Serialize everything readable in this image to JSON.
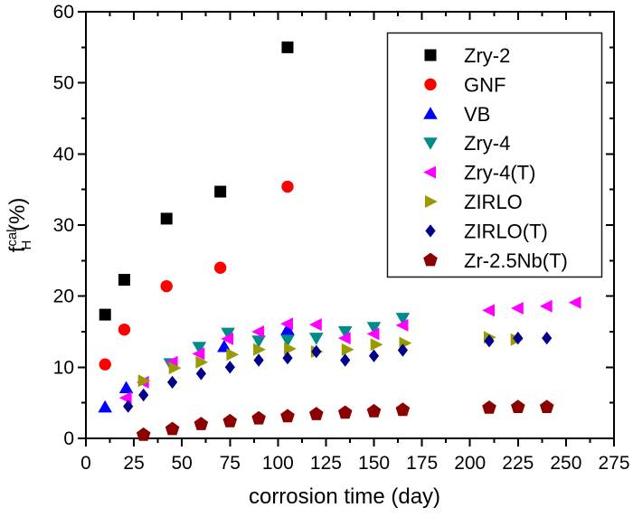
{
  "figure": {
    "background": "#ffffff",
    "frame_color": "#000000"
  },
  "chart_data": {
    "type": "scatter",
    "title": "",
    "xlabel": "corrosion time (day)",
    "ylabel": "f_H^cal (%)",
    "ylabel_parts": {
      "base": "f",
      "sup": "cal",
      "sub": "H",
      "suffix": " (%)"
    },
    "xlim": [
      0,
      275
    ],
    "ylim": [
      0,
      60
    ],
    "x_major_ticks": [
      0,
      25,
      50,
      75,
      100,
      125,
      150,
      175,
      200,
      225,
      250,
      275
    ],
    "x_minor_step": 12.5,
    "y_major_ticks": [
      0,
      10,
      20,
      30,
      40,
      50,
      60
    ],
    "y_minor_step": 5,
    "grid": false,
    "legend_position": "top-right",
    "series": [
      {
        "name": "Zry-2",
        "marker": "square",
        "color": "#000000",
        "points": [
          [
            10,
            17.4
          ],
          [
            20,
            22.3
          ],
          [
            42,
            30.9
          ],
          [
            70,
            34.7
          ],
          [
            105,
            55.0
          ]
        ]
      },
      {
        "name": "GNF",
        "marker": "circle",
        "color": "#ff0000",
        "points": [
          [
            10,
            10.4
          ],
          [
            20,
            15.3
          ],
          [
            42,
            21.4
          ],
          [
            70,
            24.0
          ],
          [
            105,
            35.4
          ]
        ]
      },
      {
        "name": "VB",
        "marker": "triangle-up",
        "color": "#0000ff",
        "points": [
          [
            10,
            4.4
          ],
          [
            21,
            7.1
          ],
          [
            72,
            12.9
          ],
          [
            105,
            15.3
          ]
        ]
      },
      {
        "name": "Zry-4",
        "marker": "triangle-down",
        "color": "#008b8b",
        "points": [
          [
            44,
            10.5
          ],
          [
            59,
            12.8
          ],
          [
            74,
            14.8
          ],
          [
            90,
            13.7
          ],
          [
            105,
            13.8
          ],
          [
            120,
            14.1
          ],
          [
            135,
            15.0
          ],
          [
            150,
            15.6
          ],
          [
            165,
            16.9
          ]
        ]
      },
      {
        "name": "Zry-4(T)",
        "marker": "triangle-left",
        "color": "#ff00ff",
        "points": [
          [
            21,
            5.7
          ],
          [
            30,
            7.9
          ],
          [
            45,
            10.7
          ],
          [
            59,
            11.9
          ],
          [
            74,
            14.0
          ],
          [
            90,
            15.0
          ],
          [
            105,
            16.1
          ],
          [
            120,
            16.0
          ],
          [
            135,
            14.1
          ],
          [
            150,
            14.7
          ],
          [
            165,
            15.9
          ],
          [
            210,
            18.0
          ],
          [
            225,
            18.3
          ],
          [
            240,
            18.6
          ],
          [
            255,
            19.1
          ]
        ]
      },
      {
        "name": "ZIRLO",
        "marker": "triangle-right",
        "color": "#999900",
        "points": [
          [
            30,
            8.1
          ],
          [
            46,
            9.9
          ],
          [
            60,
            10.7
          ],
          [
            76,
            11.8
          ],
          [
            90,
            12.5
          ],
          [
            106,
            12.6
          ],
          [
            120,
            12.2
          ],
          [
            136,
            12.5
          ],
          [
            151,
            13.2
          ],
          [
            166,
            13.4
          ],
          [
            210,
            14.2
          ],
          [
            224,
            13.9
          ]
        ]
      },
      {
        "name": "ZIRLO(T)",
        "marker": "diamond",
        "color": "#00008b",
        "points": [
          [
            22,
            4.5
          ],
          [
            30,
            6.1
          ],
          [
            45,
            7.9
          ],
          [
            60,
            9.1
          ],
          [
            75,
            10.0
          ],
          [
            90,
            11.0
          ],
          [
            105,
            11.3
          ],
          [
            120,
            12.2
          ],
          [
            135,
            11.0
          ],
          [
            150,
            11.6
          ],
          [
            165,
            12.4
          ],
          [
            210,
            13.7
          ],
          [
            225,
            14.1
          ],
          [
            240,
            14.1
          ]
        ]
      },
      {
        "name": "Zr-2.5Nb(T)",
        "marker": "pentagon",
        "color": "#8b0000",
        "points": [
          [
            30,
            0.5
          ],
          [
            45,
            1.3
          ],
          [
            60,
            2.0
          ],
          [
            75,
            2.4
          ],
          [
            90,
            2.8
          ],
          [
            105,
            3.1
          ],
          [
            120,
            3.4
          ],
          [
            135,
            3.6
          ],
          [
            150,
            3.8
          ],
          [
            165,
            4.0
          ],
          [
            210,
            4.3
          ],
          [
            225,
            4.4
          ],
          [
            240,
            4.4
          ]
        ]
      }
    ]
  }
}
